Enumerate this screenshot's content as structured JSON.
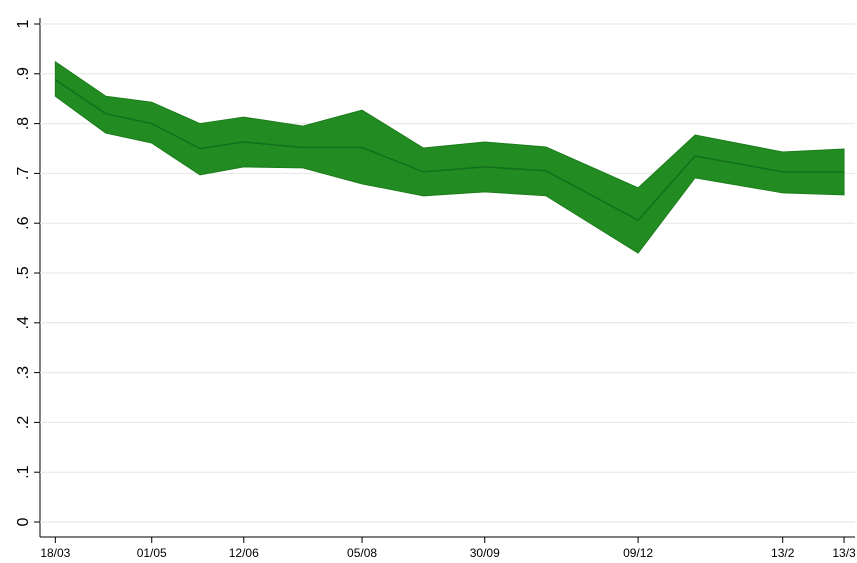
{
  "chart_data": {
    "type": "band-line",
    "x": [
      0,
      23,
      44,
      66,
      86,
      113,
      140,
      168,
      196,
      224,
      266,
      292,
      332,
      360
    ],
    "values": [
      0.888,
      0.82,
      0.8,
      0.75,
      0.763,
      0.752,
      0.752,
      0.703,
      0.713,
      0.705,
      0.606,
      0.735,
      0.703,
      0.703
    ],
    "upper": [
      0.924,
      0.855,
      0.843,
      0.8,
      0.813,
      0.795,
      0.827,
      0.751,
      0.763,
      0.753,
      0.671,
      0.777,
      0.743,
      0.749
    ],
    "lower": [
      0.855,
      0.781,
      0.761,
      0.697,
      0.713,
      0.711,
      0.679,
      0.655,
      0.663,
      0.655,
      0.54,
      0.691,
      0.661,
      0.657
    ],
    "color": "#228b22",
    "line_color": "#12701a",
    "band_edge_color": "#1b7d1b",
    "xlim": [
      -7,
      365
    ],
    "xticks": [
      {
        "value": 0,
        "label": "18/03"
      },
      {
        "value": 44,
        "label": "01/05"
      },
      {
        "value": 86,
        "label": "12/06"
      },
      {
        "value": 140,
        "label": "05/08"
      },
      {
        "value": 196,
        "label": "30/09"
      },
      {
        "value": 266,
        "label": "09/12"
      },
      {
        "value": 332,
        "label": "13/2"
      },
      {
        "value": 360,
        "label": "13/3"
      }
    ],
    "ylim": [
      0,
      1
    ],
    "yticks": [
      0,
      {
        "value": 0.1,
        "label": ".1"
      },
      {
        "value": 0.2,
        "label": ".2"
      },
      {
        "value": 0.3,
        "label": ".3"
      },
      {
        "value": 0.4,
        "label": ".4"
      },
      {
        "value": 0.5,
        "label": ".5"
      },
      {
        "value": 0.6,
        "label": ".6"
      },
      {
        "value": 0.7,
        "label": ".7"
      },
      {
        "value": 0.8,
        "label": ".8"
      },
      {
        "value": 0.9,
        "label": ".9"
      },
      1
    ],
    "grid": true
  }
}
